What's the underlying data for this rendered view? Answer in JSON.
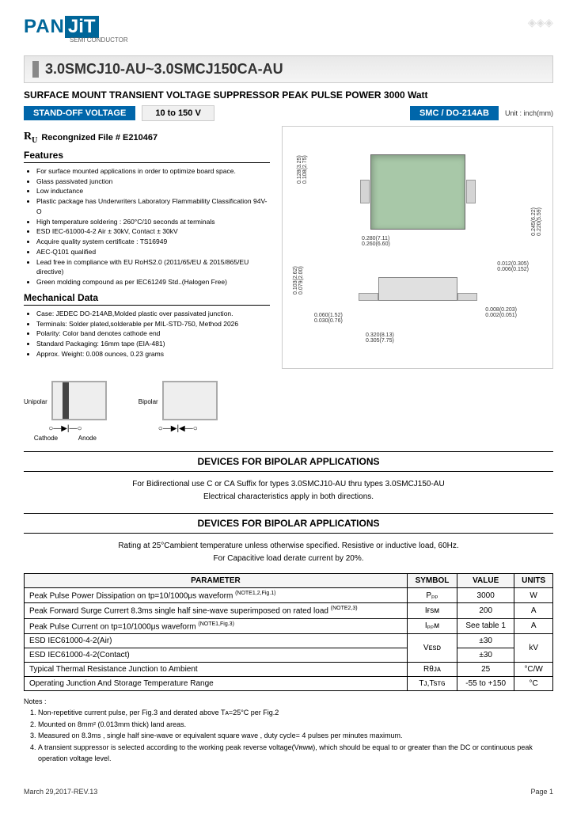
{
  "logo": {
    "pan": "PAN",
    "jit": "JiT",
    "sub": "SEMI\nCONDUCTOR"
  },
  "main_title": "3.0SMCJ10-AU~3.0SMCJ150CA-AU",
  "subtitle": "SURFACE MOUNT TRANSIENT VOLTAGE SUPPRESSOR PEAK PULSE POWER 3000 Watt",
  "standoff": {
    "label": "STAND-OFF VOLTAGE",
    "value": "10 to 150 V"
  },
  "package": {
    "label": "SMC / DO-214AB",
    "unit": "Unit : inch(mm)"
  },
  "recog": {
    "label": "Recongnized File # E210467"
  },
  "features_title": "Features",
  "features": [
    "For surface mounted applications in order to optimize board space.",
    "Glass passivated junction",
    "Low inductance",
    "Plastic package has Underwriters Laboratory Flammability Classification 94V-O",
    "High temperature soldering : 260°C/10 seconds at terminals",
    "ESD IEC-61000-4-2 Air ± 30kV, Contact ± 30kV",
    "Acquire quality system certificate : TS16949",
    "AEC-Q101 qualified",
    "Lead free in compliance with EU RoHS2.0 (2011/65/EU & 2015/865/EU directive)",
    "Green molding compound as per IEC61249 Std..(Halogen Free)"
  ],
  "mech_title": "Mechanical Data",
  "mech": [
    "Case: JEDEC DO-214AB,Molded plastic over passivated junction.",
    "Terminals: Solder plated,solderable per MIL-STD-750, Method 2026",
    "Polarity: Color band denotes cathode end",
    "Standard Packaging: 16mm tape (EIA-481)",
    "Approx. Weight: 0.008 ounces, 0.23 grams"
  ],
  "diag": {
    "unipolar": "Unipolar",
    "bipolar": "Bipolar",
    "cathode": "Cathode",
    "anode": "Anode"
  },
  "bipolar_sec": {
    "title": "DEVICES  FOR  BIPOLAR  APPLICATIONS",
    "line1": "For Bidirectional use C or CA Suffix for types 3.0SMCJ10-AU thru types 3.0SMCJ150-AU",
    "line2": "Electrical characteristics apply in both directions."
  },
  "rating_sec": {
    "title": "DEVICES  FOR  BIPOLAR  APPLICATIONS",
    "line1": "Rating at 25°Cambient temperature unless otherwise specified. Resistive or inductive load, 60Hz.",
    "line2": "For Capacitive load derate current by 20%."
  },
  "table": {
    "headers": [
      "PARAMETER",
      "SYMBOL",
      "VALUE",
      "UNITS"
    ],
    "rows": [
      {
        "param": "Peak Pulse Power Dissipation on tp=10/1000μs waveform",
        "note": "(NOTE1,2,Fig.1)",
        "symbol": "Pₚₚ",
        "value": "3000",
        "units": "W",
        "span": 1
      },
      {
        "param": "Peak Forward Surge Currert 8.3ms single half sine-wave superimposed on rated load",
        "note": "(NOTE2,3)",
        "symbol": "Iғsм",
        "value": "200",
        "units": "A",
        "span": 1
      },
      {
        "param": "Peak Pulse Current on tp=10/1000μs waveform",
        "note": "(NOTE1,Fig.3)",
        "symbol": "Iₚₚм",
        "value": "See table 1",
        "units": "A",
        "span": 1
      },
      {
        "param": "ESD IEC61000-4-2(Air)",
        "symbol": "Vᴇsᴅ",
        "value": "±30",
        "units": "kV",
        "span": 2,
        "param2": "ESD IEC61000-4-2(Contact)",
        "value2": "±30"
      },
      {
        "param": "Typical Thermal Resistance Junction to Ambient",
        "symbol": "Rθᴊᴀ",
        "value": "25",
        "units": "°C/W",
        "span": 1
      },
      {
        "param": "Operating Junction And Storage Temperature Range",
        "symbol": "Tᴊ,Tsᴛɢ",
        "value": "-55 to +150",
        "units": "°C",
        "span": 1
      }
    ]
  },
  "notes": {
    "title": "Notes :",
    "items": [
      "Non-repetitive current pulse, per Fig.3 and derated above Tᴀ=25°C per Fig.2",
      "Mounted on 8mm² (0.013mm thick) land areas.",
      "Measured on 8.3ms , single half sine-wave or equivalent square wave , duty cycle= 4 pulses per minutes maximum.",
      "A transient suppressor is selected according to the working peak reverse voltage(Vʀwм), which should be equal to or greater than the DC or continuous peak operation voltage level."
    ]
  },
  "dims": {
    "t1": "0.128(3.25)",
    "t2": "0.108(2.75)",
    "t3": "0.245(6.22)",
    "t4": "0.220(5.59)",
    "t5": "0.280(7.11)",
    "t6": "0.260(6.60)",
    "s1": "0.103(2.62)",
    "s2": "0.079(2.00)",
    "s3": "0.012(0.305)",
    "s4": "0.006(0.152)",
    "s5": "0.060(1.52)",
    "s6": "0.030(0.76)",
    "s7": "0.008(0.203)",
    "s8": "0.002(0.051)",
    "s9": "0.320(8.13)",
    "s10": "0.305(7.75)"
  },
  "footer": {
    "date": "March 29,2017-REV.13",
    "page": "Page 1"
  }
}
